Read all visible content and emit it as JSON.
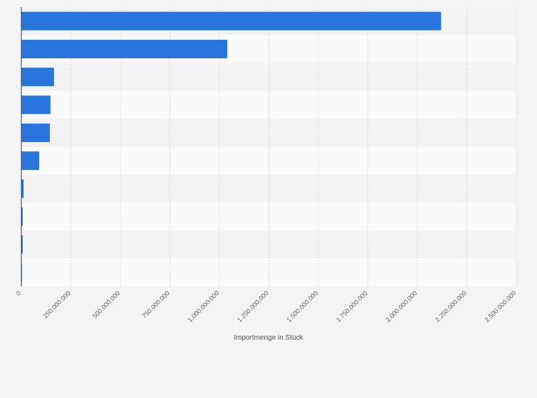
{
  "chart_data": {
    "type": "bar",
    "orientation": "horizontal",
    "x_label": "Importmenge in Stück",
    "categories": [
      null,
      null,
      null,
      null,
      null,
      null,
      null,
      null,
      null,
      null
    ],
    "values": [
      2120000000,
      1040000000,
      165000000,
      147000000,
      144000000,
      90000000,
      11000000,
      7000000,
      7000000,
      3000000
    ],
    "color": "#2876dd",
    "xlim": [
      0,
      2500000000
    ],
    "xticks": [
      0,
      {
        "value": 250000000,
        "label": "250.000.000"
      },
      {
        "value": 500000000,
        "label": "500.000.000"
      },
      {
        "value": 750000000,
        "label": "750.000.000"
      },
      {
        "value": 1000000000,
        "label": "1.000.000.000"
      },
      {
        "value": 1250000000,
        "label": "1.250.000.000"
      },
      {
        "value": 1500000000,
        "label": "1.500.000.000"
      },
      {
        "value": 1750000000,
        "label": "1.750.000.000"
      },
      {
        "value": 2000000000,
        "label": "2.000.000.000"
      },
      {
        "value": 2250000000,
        "label": "2.250.000.000"
      },
      {
        "value": 2500000000,
        "label": "2.500.000.000"
      }
    ],
    "grid": true
  }
}
